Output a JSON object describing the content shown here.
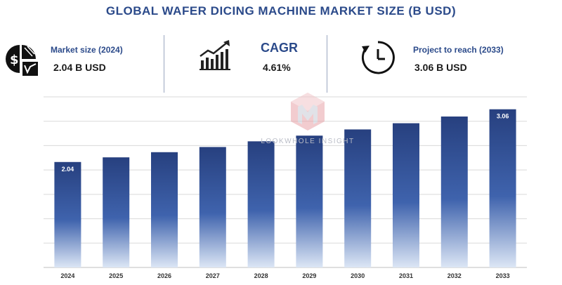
{
  "title": "GLOBAL WAFER DICING MACHINE MARKET SIZE (B USD)",
  "kpis": {
    "market_size": {
      "label": "Market size (2024)",
      "value": "2.04 B USD",
      "icon": "dollar-pie-icon"
    },
    "cagr": {
      "label": "CAGR",
      "value": "4.61%",
      "icon": "growth-chart-icon"
    },
    "projection": {
      "label": "Project to reach (2033)",
      "value": "3.06 B USD",
      "icon": "clock-refresh-icon"
    }
  },
  "watermark": "LOOKWHOLE INSIGHT",
  "colors": {
    "title": "#2b4a8a",
    "bar_top": "#27407f",
    "bar_bottom": "#dce6f5",
    "grid": "#d9d9d9"
  },
  "chart_data": {
    "type": "bar",
    "categories": [
      "2024",
      "2025",
      "2026",
      "2027",
      "2028",
      "2029",
      "2030",
      "2031",
      "2032",
      "2033"
    ],
    "values": [
      2.04,
      2.13,
      2.23,
      2.33,
      2.44,
      2.55,
      2.67,
      2.79,
      2.92,
      3.06
    ],
    "data_labels": {
      "0": "2.04",
      "9": "3.06"
    },
    "ylim": [
      0,
      3.3
    ],
    "grid": true,
    "xlabel": "",
    "ylabel": ""
  }
}
